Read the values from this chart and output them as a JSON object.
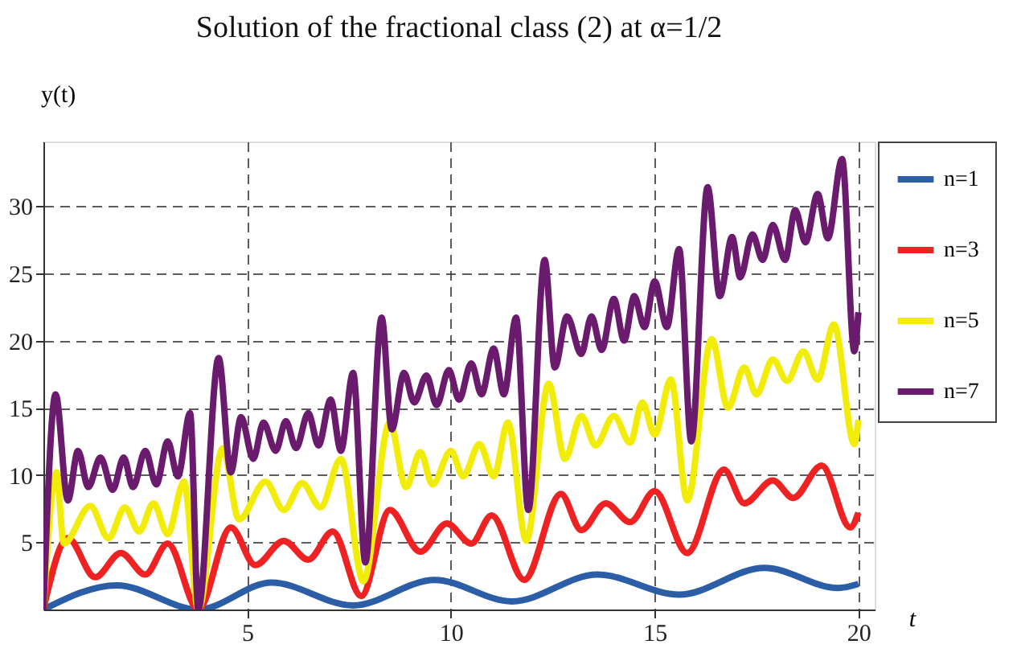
{
  "chart_data": {
    "type": "line",
    "title": "Solution of the fractional class (2) at α=1/2",
    "xlabel": "t",
    "ylabel": "y(t)",
    "xlim": [
      0,
      20.4
    ],
    "ylim": [
      0,
      34.8
    ],
    "xticks": [
      5,
      10,
      15,
      20
    ],
    "yticks": [
      5,
      10,
      15,
      20,
      25,
      30
    ],
    "grid": true,
    "legend": "right",
    "line_style": "solid",
    "marker": "none",
    "series": [
      {
        "name": "n=1",
        "color": "#2b5ea7",
        "x": [
          0,
          1.8,
          3.8,
          5.6,
          7.6,
          9.6,
          11.5,
          13.6,
          15.6,
          17.7,
          19.5,
          20
        ],
        "values": [
          0,
          1.8,
          0,
          2.0,
          0.3,
          2.2,
          0.6,
          2.6,
          1.1,
          3.1,
          1.6,
          1.9
        ]
      },
      {
        "name": "n=3",
        "color": "#ee2222",
        "x": [
          0,
          0.6,
          1.27,
          1.9,
          2.5,
          3.05,
          3.8,
          4.6,
          5.2,
          5.9,
          6.5,
          7.1,
          7.8,
          8.5,
          9.25,
          9.9,
          10.5,
          11.0,
          11.8,
          12.7,
          13.2,
          13.8,
          14.4,
          15.0,
          15.8,
          16.7,
          17.2,
          17.9,
          18.4,
          19.1,
          19.8,
          20
        ],
        "values": [
          0,
          5.3,
          2.4,
          4.2,
          2.6,
          4.9,
          0,
          6.1,
          3.3,
          5.1,
          3.7,
          5.8,
          1.0,
          7.4,
          4.3,
          6.4,
          4.9,
          7.0,
          2.2,
          8.6,
          5.9,
          7.9,
          6.5,
          8.8,
          4.2,
          10.4,
          7.9,
          9.6,
          8.3,
          10.7,
          6.1,
          7.2
        ]
      },
      {
        "name": "n=5",
        "color": "#f2ec0a",
        "x": [
          0,
          0.32,
          0.5,
          1.15,
          1.6,
          2.0,
          2.35,
          2.7,
          3.05,
          3.45,
          3.8,
          4.4,
          4.8,
          5.45,
          5.9,
          6.35,
          6.8,
          7.3,
          7.85,
          8.5,
          8.9,
          9.25,
          9.55,
          10.0,
          10.3,
          10.7,
          11.05,
          11.4,
          11.85,
          12.4,
          12.8,
          13.2,
          13.55,
          14.0,
          14.4,
          14.7,
          15.0,
          15.4,
          15.8,
          16.4,
          16.8,
          17.2,
          17.5,
          17.9,
          18.25,
          18.65,
          19.0,
          19.4,
          19.9,
          20
        ],
        "values": [
          0,
          10.2,
          4.9,
          7.7,
          5.3,
          7.6,
          5.8,
          7.9,
          5.6,
          9.5,
          0,
          12.0,
          6.7,
          9.5,
          7.4,
          9.4,
          7.6,
          11.2,
          2.1,
          13.9,
          9.1,
          11.7,
          9.3,
          11.8,
          9.9,
          12.3,
          9.9,
          13.9,
          5.1,
          16.8,
          11.2,
          14.4,
          12.2,
          14.4,
          12.4,
          15.4,
          13.0,
          17.1,
          8.1,
          20.1,
          15.0,
          18.0,
          16.0,
          18.6,
          17.0,
          19.2,
          17.1,
          21.2,
          12.3,
          14.1
        ]
      },
      {
        "name": "n=7",
        "color": "#6a1b6e",
        "x": [
          0,
          0.3,
          0.6,
          0.85,
          1.1,
          1.4,
          1.7,
          1.97,
          2.2,
          2.5,
          2.77,
          3.05,
          3.3,
          3.6,
          3.8,
          4.3,
          4.6,
          4.85,
          5.15,
          5.4,
          5.7,
          5.95,
          6.2,
          6.5,
          6.75,
          7.05,
          7.3,
          7.6,
          7.9,
          8.3,
          8.55,
          8.85,
          9.1,
          9.4,
          9.65,
          9.95,
          10.2,
          10.5,
          10.75,
          11.05,
          11.3,
          11.6,
          11.9,
          12.3,
          12.55,
          12.85,
          13.2,
          13.45,
          13.7,
          14.0,
          14.25,
          14.5,
          14.75,
          15.0,
          15.3,
          15.6,
          15.9,
          16.3,
          16.6,
          16.9,
          17.1,
          17.4,
          17.65,
          17.9,
          18.2,
          18.45,
          18.7,
          19.0,
          19.25,
          19.6,
          19.9,
          20
        ],
        "values": [
          0,
          16.0,
          8.1,
          11.8,
          9.1,
          11.3,
          8.9,
          11.3,
          9.1,
          11.8,
          9.3,
          12.5,
          9.9,
          14.6,
          0,
          18.7,
          10.2,
          14.3,
          11.2,
          13.9,
          11.8,
          14.0,
          12.0,
          14.6,
          12.2,
          15.6,
          11.8,
          17.6,
          3.5,
          21.7,
          13.4,
          17.6,
          15.4,
          17.4,
          15.2,
          17.8,
          15.6,
          18.3,
          16.0,
          19.4,
          16.0,
          21.7,
          7.4,
          26.0,
          18.0,
          21.8,
          19.0,
          21.8,
          19.3,
          23.1,
          20.0,
          23.3,
          21.0,
          24.4,
          21.0,
          26.8,
          12.5,
          31.4,
          23.3,
          27.7,
          24.7,
          27.9,
          26.0,
          28.6,
          26.0,
          29.7,
          27.3,
          30.9,
          27.6,
          33.5,
          19.2,
          22.1
        ]
      }
    ]
  }
}
